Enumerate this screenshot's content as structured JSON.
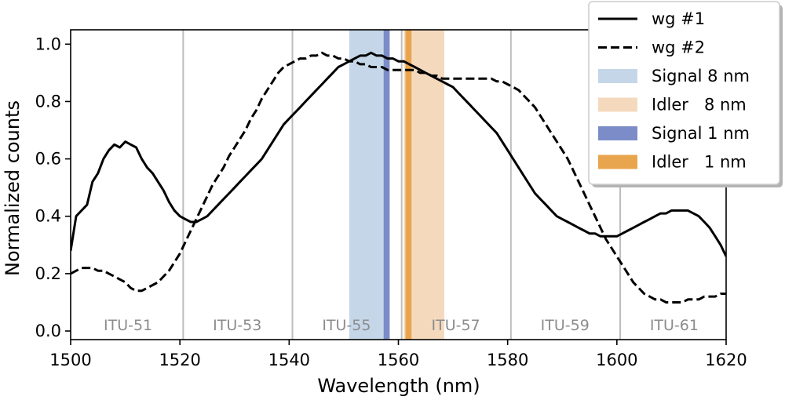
{
  "chart_data": {
    "type": "line",
    "xlabel": "Wavelength (nm)",
    "ylabel": "Normalized counts",
    "xlim": [
      1500,
      1620
    ],
    "ylim": [
      -0.03,
      1.05
    ],
    "x_ticks": [
      "1500",
      "1520",
      "1540",
      "1560",
      "1580",
      "1600",
      "1620"
    ],
    "y_ticks": [
      "0.0",
      "0.2",
      "0.4",
      "0.6",
      "0.8",
      "1.0"
    ],
    "grid": "vertical lines at ITU channels",
    "itu_channels": [
      {
        "label": "ITU-51",
        "x": 1510.5,
        "line": 1520.6
      },
      {
        "label": "ITU-53",
        "x": 1530.5,
        "line": 1540.6
      },
      {
        "label": "ITU-55",
        "x": 1550.5,
        "line": 1560.6
      },
      {
        "label": "ITU-57",
        "x": 1570.5,
        "line": 1580.6
      },
      {
        "label": "ITU-59",
        "x": 1590.5,
        "line": 1600.6
      },
      {
        "label": "ITU-61",
        "x": 1610.5,
        "line": null
      }
    ],
    "bands": [
      {
        "name": "Signal 8 nm",
        "x0": 1551.0,
        "x1": 1558.4,
        "color": "#c5d6e8"
      },
      {
        "name": "Idler   8 nm",
        "x0": 1561.0,
        "x1": 1568.4,
        "color": "#f5d9bd"
      },
      {
        "name": "Signal 1 nm",
        "x0": 1557.3,
        "x1": 1558.4,
        "color": "#7b8cc8"
      },
      {
        "name": "Idler   1 nm",
        "x0": 1561.3,
        "x1": 1562.4,
        "color": "#e9a54d"
      }
    ],
    "series": [
      {
        "name": "wg #1",
        "style": "solid",
        "x": [
          1500,
          1501,
          1502,
          1503,
          1504,
          1505,
          1506,
          1507,
          1508,
          1509,
          1510,
          1511,
          1512,
          1513,
          1514,
          1515,
          1516,
          1517,
          1518,
          1519,
          1520,
          1521,
          1522,
          1523,
          1524,
          1525,
          1526,
          1527,
          1528,
          1529,
          1530,
          1531,
          1532,
          1533,
          1534,
          1535,
          1536,
          1537,
          1538,
          1539,
          1540,
          1541,
          1542,
          1543,
          1544,
          1545,
          1546,
          1547,
          1548,
          1549,
          1550,
          1551,
          1552,
          1553,
          1554,
          1555,
          1556,
          1557,
          1558,
          1559,
          1560,
          1561,
          1562,
          1563,
          1564,
          1565,
          1566,
          1567,
          1568,
          1569,
          1570,
          1571,
          1572,
          1573,
          1574,
          1575,
          1576,
          1577,
          1578,
          1579,
          1580,
          1581,
          1582,
          1583,
          1584,
          1585,
          1586,
          1587,
          1588,
          1589,
          1590,
          1591,
          1592,
          1593,
          1594,
          1595,
          1596,
          1597,
          1598,
          1599,
          1600,
          1601,
          1602,
          1603,
          1604,
          1605,
          1606,
          1607,
          1608,
          1609,
          1610,
          1611,
          1612,
          1613,
          1614,
          1615,
          1616,
          1617,
          1618,
          1619,
          1620
        ],
        "y": [
          0.28,
          0.4,
          0.42,
          0.44,
          0.52,
          0.55,
          0.6,
          0.63,
          0.65,
          0.64,
          0.66,
          0.65,
          0.64,
          0.6,
          0.57,
          0.55,
          0.52,
          0.49,
          0.45,
          0.42,
          0.4,
          0.39,
          0.38,
          0.38,
          0.39,
          0.4,
          0.42,
          0.44,
          0.46,
          0.48,
          0.5,
          0.52,
          0.54,
          0.56,
          0.58,
          0.6,
          0.63,
          0.66,
          0.69,
          0.72,
          0.74,
          0.76,
          0.78,
          0.8,
          0.82,
          0.84,
          0.86,
          0.88,
          0.9,
          0.92,
          0.93,
          0.94,
          0.95,
          0.96,
          0.96,
          0.97,
          0.96,
          0.96,
          0.95,
          0.95,
          0.94,
          0.94,
          0.93,
          0.92,
          0.91,
          0.9,
          0.89,
          0.88,
          0.87,
          0.86,
          0.85,
          0.83,
          0.81,
          0.79,
          0.77,
          0.75,
          0.73,
          0.71,
          0.69,
          0.66,
          0.63,
          0.6,
          0.57,
          0.54,
          0.51,
          0.48,
          0.46,
          0.44,
          0.42,
          0.4,
          0.39,
          0.38,
          0.37,
          0.36,
          0.35,
          0.34,
          0.34,
          0.33,
          0.33,
          0.33,
          0.33,
          0.34,
          0.35,
          0.36,
          0.37,
          0.38,
          0.39,
          0.4,
          0.41,
          0.41,
          0.42,
          0.42,
          0.42,
          0.42,
          0.41,
          0.4,
          0.38,
          0.36,
          0.33,
          0.3,
          0.26
        ]
      },
      {
        "name": "wg #2",
        "style": "dashed",
        "x": [
          1500,
          1501,
          1502,
          1503,
          1504,
          1505,
          1506,
          1507,
          1508,
          1509,
          1510,
          1511,
          1512,
          1513,
          1514,
          1515,
          1516,
          1517,
          1518,
          1519,
          1520,
          1521,
          1522,
          1523,
          1524,
          1525,
          1526,
          1527,
          1528,
          1529,
          1530,
          1531,
          1532,
          1533,
          1534,
          1535,
          1536,
          1537,
          1538,
          1539,
          1540,
          1541,
          1542,
          1543,
          1544,
          1545,
          1546,
          1547,
          1548,
          1549,
          1550,
          1551,
          1552,
          1553,
          1554,
          1555,
          1556,
          1557,
          1558,
          1559,
          1560,
          1561,
          1562,
          1563,
          1564,
          1565,
          1566,
          1567,
          1568,
          1569,
          1570,
          1571,
          1572,
          1573,
          1574,
          1575,
          1576,
          1577,
          1578,
          1579,
          1580,
          1581,
          1582,
          1583,
          1584,
          1585,
          1586,
          1587,
          1588,
          1589,
          1590,
          1591,
          1592,
          1593,
          1594,
          1595,
          1596,
          1597,
          1598,
          1599,
          1600,
          1601,
          1602,
          1603,
          1604,
          1605,
          1606,
          1607,
          1608,
          1609,
          1610,
          1611,
          1612,
          1613,
          1614,
          1615,
          1616,
          1617,
          1618,
          1619,
          1620
        ],
        "y": [
          0.2,
          0.21,
          0.22,
          0.22,
          0.22,
          0.21,
          0.21,
          0.2,
          0.19,
          0.18,
          0.17,
          0.15,
          0.14,
          0.14,
          0.15,
          0.16,
          0.17,
          0.19,
          0.21,
          0.24,
          0.27,
          0.31,
          0.35,
          0.39,
          0.43,
          0.47,
          0.51,
          0.54,
          0.57,
          0.61,
          0.64,
          0.67,
          0.7,
          0.74,
          0.77,
          0.81,
          0.84,
          0.87,
          0.9,
          0.92,
          0.93,
          0.94,
          0.95,
          0.95,
          0.96,
          0.96,
          0.97,
          0.96,
          0.96,
          0.95,
          0.95,
          0.94,
          0.94,
          0.93,
          0.93,
          0.92,
          0.92,
          0.92,
          0.91,
          0.91,
          0.91,
          0.91,
          0.91,
          0.91,
          0.9,
          0.9,
          0.89,
          0.89,
          0.88,
          0.88,
          0.88,
          0.88,
          0.88,
          0.88,
          0.88,
          0.88,
          0.88,
          0.88,
          0.87,
          0.87,
          0.86,
          0.85,
          0.84,
          0.82,
          0.8,
          0.78,
          0.75,
          0.72,
          0.69,
          0.66,
          0.63,
          0.6,
          0.56,
          0.52,
          0.48,
          0.44,
          0.4,
          0.36,
          0.32,
          0.29,
          0.26,
          0.23,
          0.2,
          0.17,
          0.15,
          0.13,
          0.12,
          0.11,
          0.11,
          0.1,
          0.1,
          0.1,
          0.1,
          0.11,
          0.11,
          0.11,
          0.12,
          0.12,
          0.12,
          0.13,
          0.13
        ]
      }
    ],
    "legend": {
      "placement": "top-right",
      "entries": [
        {
          "label": "wg #1",
          "kind": "line-solid"
        },
        {
          "label": "wg #2",
          "kind": "line-dashed"
        },
        {
          "label": "Signal 8 nm",
          "kind": "patch",
          "color": "#c5d6e8"
        },
        {
          "label": "Idler   8 nm",
          "kind": "patch",
          "color": "#f5d9bd"
        },
        {
          "label": "Signal 1 nm",
          "kind": "patch",
          "color": "#7b8cc8"
        },
        {
          "label": "Idler   1 nm",
          "kind": "patch",
          "color": "#e9a54d"
        }
      ]
    }
  }
}
